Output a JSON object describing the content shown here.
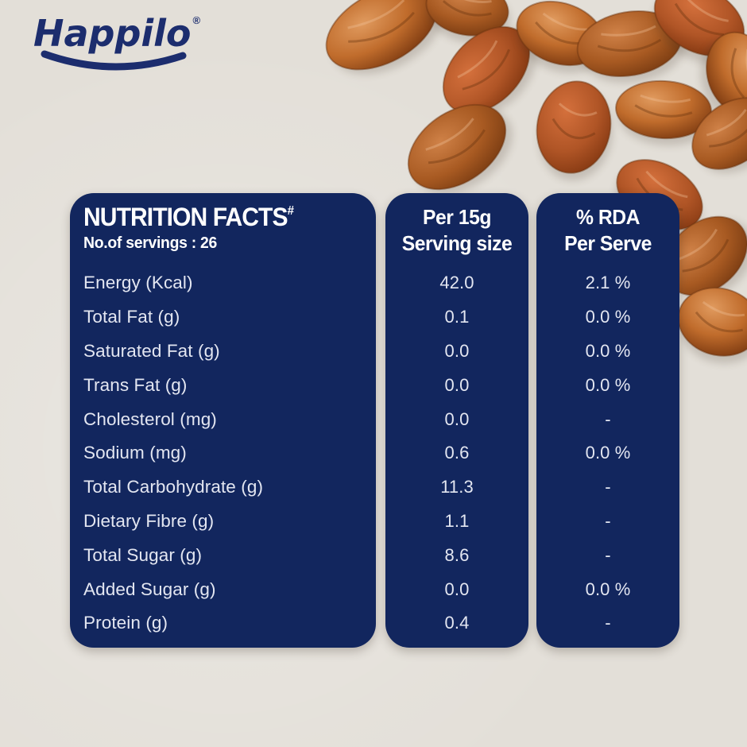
{
  "logo": {
    "brand": "Happilo",
    "registered": "®"
  },
  "table": {
    "title": "NUTRITION FACTS",
    "title_superscript": "#",
    "servings_label": "No.of servings : 26",
    "col_serving": {
      "line1": "Per 15g",
      "line2": "Serving size"
    },
    "col_rda": {
      "line1": "% RDA",
      "line2": "Per Serve"
    },
    "rows": [
      {
        "label": "Energy (Kcal)",
        "per_serving": "42.0",
        "rda": "2.1 %"
      },
      {
        "label": "Total Fat (g)",
        "per_serving": "0.1",
        "rda": "0.0 %"
      },
      {
        "label": "Saturated Fat (g)",
        "per_serving": "0.0",
        "rda": "0.0 %"
      },
      {
        "label": "Trans Fat (g)",
        "per_serving": "0.0",
        "rda": "0.0 %"
      },
      {
        "label": "Cholesterol (mg)",
        "per_serving": "0.0",
        "rda": "-"
      },
      {
        "label": "Sodium (mg)",
        "per_serving": "0.6",
        "rda": "0.0 %"
      },
      {
        "label": "Total Carbohydrate (g)",
        "per_serving": "11.3",
        "rda": "-"
      },
      {
        "label": "Dietary Fibre (g)",
        "per_serving": "1.1",
        "rda": "-"
      },
      {
        "label": "Total Sugar (g)",
        "per_serving": "8.6",
        "rda": "-"
      },
      {
        "label": "Added Sugar (g)",
        "per_serving": "0.0",
        "rda": "0.0 %"
      },
      {
        "label": "Protein (g)",
        "per_serving": "0.4",
        "rda": "-"
      }
    ]
  },
  "colors": {
    "brand_navy": "#1c2d6e",
    "panel_navy": "#12265e",
    "header_text": "#ffffff",
    "row_text": "#e3e6f1",
    "background_beige": "#e3dfd8",
    "date_highlight": "#e09a5e",
    "date_mid": "#c06c2c",
    "date_shadow": "#6f3410"
  }
}
